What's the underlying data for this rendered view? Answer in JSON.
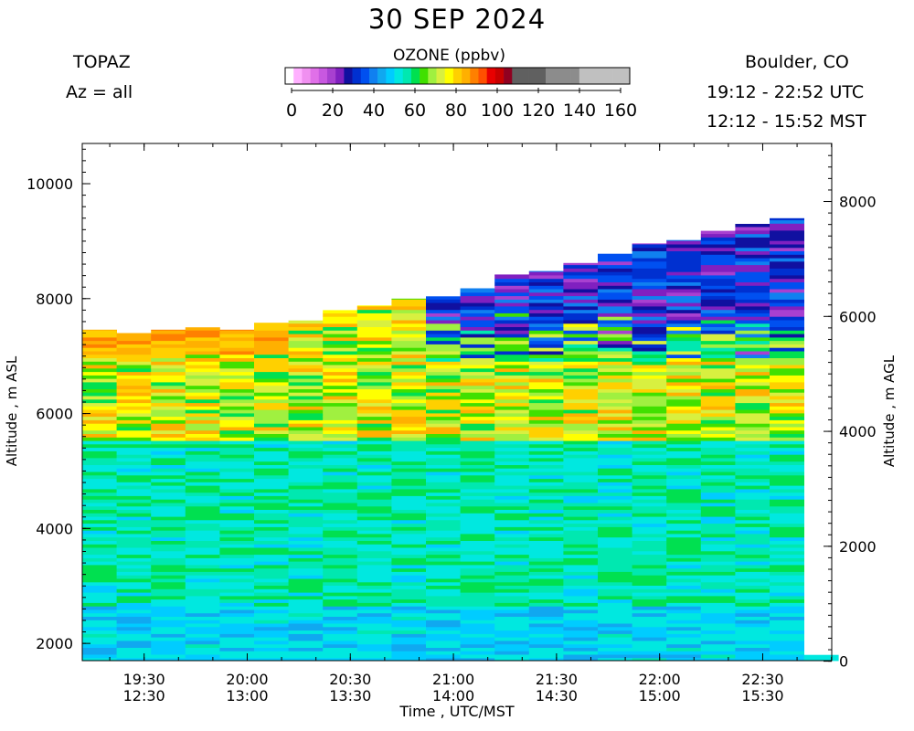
{
  "header": {
    "title": "30 SEP 2024",
    "instrument": "TOPAZ",
    "azimuth": "Az = all",
    "location": "Boulder, CO",
    "utc_range": "19:12 - 22:52 UTC",
    "mst_range": "12:12 - 15:52 MST"
  },
  "colorbar": {
    "title": "OZONE (ppbv)",
    "ticks": [
      "0",
      "20",
      "40",
      "60",
      "80",
      "100",
      "120",
      "140",
      "160"
    ],
    "colors": [
      "#ffffff",
      "#ffb0ff",
      "#f090f0",
      "#e070e8",
      "#c858e0",
      "#a840d0",
      "#8020c0",
      "#1010a0",
      "#0030d0",
      "#0050f0",
      "#1080f0",
      "#10a8f0",
      "#00ccff",
      "#00e8e0",
      "#00e8b0",
      "#00e050",
      "#40e000",
      "#a0f040",
      "#d8f040",
      "#ffff00",
      "#ffd000",
      "#ffb000",
      "#ff8000",
      "#ff5000",
      "#e80000",
      "#c80000",
      "#900020",
      "#606060",
      "#606060",
      "#606060",
      "#606060",
      "#8c8c8c",
      "#8c8c8c",
      "#8c8c8c",
      "#8c8c8c",
      "#c0c0c0",
      "#c0c0c0",
      "#c0c0c0",
      "#c0c0c0",
      "#c0c0c0",
      "#c0c0c0"
    ]
  },
  "axes": {
    "xlabel": "Time , UTC/MST",
    "ylabel_left": "Altitude , m ASL",
    "ylabel_right": "Altitude , m AGL",
    "x_ticks": [
      {
        "utc": "19:30",
        "mst": "12:30"
      },
      {
        "utc": "20:00",
        "mst": "13:00"
      },
      {
        "utc": "20:30",
        "mst": "13:30"
      },
      {
        "utc": "21:00",
        "mst": "14:00"
      },
      {
        "utc": "21:30",
        "mst": "14:30"
      },
      {
        "utc": "22:00",
        "mst": "15:00"
      },
      {
        "utc": "22:30",
        "mst": "15:30"
      }
    ],
    "y_ticks_left": [
      "2000",
      "4000",
      "6000",
      "8000",
      "10000"
    ],
    "y_ticks_right": [
      "0",
      "2000",
      "4000",
      "6000",
      "8000"
    ]
  },
  "chart_data": {
    "type": "heatmap",
    "variable": "OZONE (ppbv)",
    "color_range": [
      0,
      160
    ],
    "x_range_utc": [
      "19:12",
      "22:52"
    ],
    "ylim_asl_m": [
      1700,
      10700
    ],
    "ground_asl_m": 1690,
    "profile_step_minutes": 10,
    "profile_start_times_utc": [
      "19:12",
      "19:22",
      "19:32",
      "19:42",
      "19:52",
      "20:02",
      "20:12",
      "20:22",
      "20:32",
      "20:42",
      "20:52",
      "21:02",
      "21:12",
      "21:22",
      "21:32",
      "21:42",
      "21:52",
      "22:02",
      "22:12",
      "22:22",
      "22:32",
      "22:42"
    ],
    "profile_top_asl_m": [
      7460,
      7400,
      7460,
      7500,
      7460,
      7580,
      7620,
      7800,
      7880,
      8000,
      8040,
      8180,
      8420,
      8480,
      8620,
      8780,
      8960,
      9020,
      9180,
      9300,
      9400,
      1800
    ],
    "ozone_ppbv_layers": [
      {
        "name": "near-surface (1700-2600 m ASL)",
        "range": [
          45,
          55
        ]
      },
      {
        "name": "boundary layer (2600-5500 m ASL)",
        "range": [
          50,
          62
        ]
      },
      {
        "name": "free troposphere (5500-7500 m ASL)",
        "range": [
          60,
          88
        ]
      },
      {
        "name": "upper layer, early profiles (7000-7500 m ASL)",
        "range": [
          78,
          88
        ]
      },
      {
        "name": "upper layer, late profiles (7000-9400 m ASL)",
        "range": [
          22,
          45
        ]
      }
    ]
  }
}
